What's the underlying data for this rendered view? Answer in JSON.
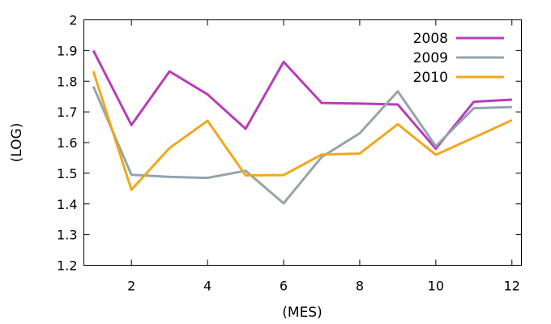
{
  "chart_data": {
    "type": "line",
    "xlabel": "(MES)",
    "ylabel": "(LOG)",
    "xlim": [
      0.75,
      12.25
    ],
    "ylim": [
      1.2,
      2.0
    ],
    "x_ticks": [
      2,
      4,
      6,
      8,
      10,
      12
    ],
    "y_ticks": [
      1.2,
      1.3,
      1.4,
      1.5,
      1.6,
      1.7,
      1.8,
      1.9,
      2.0
    ],
    "y_tick_labels": [
      "1.2",
      "1.3",
      "1.4",
      "1.5",
      "1.6",
      "1.7",
      "1.8",
      "1.9",
      "2"
    ],
    "grid": false,
    "legend_position": "top-right",
    "x": [
      1,
      2,
      3,
      4,
      5,
      6,
      7,
      8,
      9,
      10,
      11,
      12
    ],
    "series": [
      {
        "name": "2008",
        "color": "#b83db8",
        "values": [
          1.9,
          1.657,
          1.832,
          1.757,
          1.645,
          1.863,
          1.729,
          1.727,
          1.724,
          1.58,
          1.733,
          1.74
        ]
      },
      {
        "name": "2009",
        "color": "#94a5ac",
        "values": [
          1.783,
          1.495,
          1.488,
          1.485,
          1.508,
          1.402,
          1.553,
          1.63,
          1.767,
          1.588,
          1.712,
          1.716
        ]
      },
      {
        "name": "2010",
        "color": "#f0a81e",
        "values": [
          1.832,
          1.446,
          1.582,
          1.671,
          1.493,
          1.494,
          1.561,
          1.564,
          1.66,
          1.56,
          1.616,
          1.673
        ]
      }
    ]
  }
}
